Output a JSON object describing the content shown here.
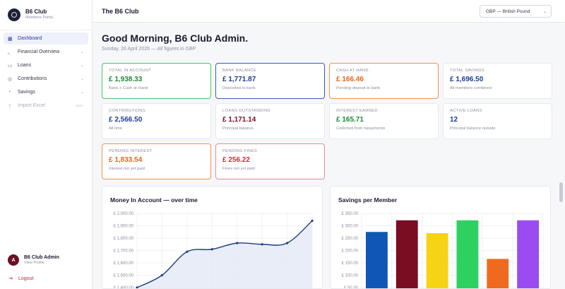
{
  "brand": {
    "title": "B6 Club",
    "subtitle": "Members Portal"
  },
  "nav": {
    "items": [
      {
        "label": "Dashboard",
        "icon": "grid-icon",
        "active": true,
        "chevron": false
      },
      {
        "label": "Financial Overview",
        "icon": "chart-icon",
        "active": false,
        "chevron": true
      },
      {
        "label": "Loans",
        "icon": "cash-icon",
        "active": false,
        "chevron": true
      },
      {
        "label": "Contributions",
        "icon": "coins-icon",
        "active": false,
        "chevron": true
      },
      {
        "label": "Savings",
        "icon": "piggy-bank-icon",
        "active": false,
        "chevron": true
      },
      {
        "label": "Import Excel",
        "icon": "upload-icon",
        "active": false,
        "chevron": false,
        "badge": "soon"
      }
    ]
  },
  "user": {
    "initial": "A",
    "name": "B6 Club Admin",
    "link": "View Profile"
  },
  "logout_label": "Logout",
  "topbar": {
    "title": "The B6 Club",
    "currency": "GBP — British Pound"
  },
  "greeting": "Good Morning, B6 Club Admin.",
  "subtitle": "Sunday, 26 April 2026 — All figures in GBP",
  "cards": [
    {
      "label": "Total in Account",
      "value": "£ 1,938.33",
      "caption": "Bank + Cash at Hand",
      "value_color": "#1f8a3a",
      "border_color": "#4cc46a"
    },
    {
      "label": "Bank Balance",
      "value": "£ 1,771.87",
      "caption": "Deposited to bank",
      "value_color": "#1f3c8f",
      "border_color": "#3b5bb8"
    },
    {
      "label": "Cash at Hand",
      "value": "£ 166.46",
      "caption": "Pending deposit to bank",
      "value_color": "#e8641b",
      "border_color": "#f0934f"
    },
    {
      "label": "Total Savings",
      "value": "£ 1,696.50",
      "caption": "All members combined",
      "value_color": "#1f3c8f",
      "border_color": "#e8e9ef"
    },
    {
      "label": "Contributions",
      "value": "£ 2,566.50",
      "caption": "All time",
      "value_color": "#1f3c8f",
      "border_color": "#e8e9ef"
    },
    {
      "label": "Loans Outstanding",
      "value": "£ 1,171.14",
      "caption": "Principal balance",
      "value_color": "#7a0f25",
      "border_color": "#e8e9ef"
    },
    {
      "label": "Interest Earned",
      "value": "£ 165.71",
      "caption": "Collected from repayments",
      "value_color": "#1f8a3a",
      "border_color": "#e8e9ef"
    },
    {
      "label": "Active Loans",
      "value": "12",
      "caption": "Principal balance outside",
      "value_color": "#1f3c8f",
      "border_color": "#e8e9ef"
    },
    {
      "label": "Pending Interest",
      "value": "£ 1,833.54",
      "caption": "Interest not yet paid",
      "value_color": "#e8641b",
      "border_color": "#f0934f"
    },
    {
      "label": "Pending Fines",
      "value": "£ 256.22",
      "caption": "Fines not yet paid",
      "value_color": "#d12a3c",
      "border_color": "#e98a96"
    }
  ],
  "chart_data": [
    {
      "type": "line",
      "title": "Money In Account — over time",
      "x": [
        0,
        1,
        2,
        3,
        4,
        5,
        6,
        7
      ],
      "series": [
        {
          "values": [
            1400,
            1500,
            1690,
            1710,
            1760,
            1750,
            1760,
            1940
          ]
        }
      ],
      "ylim": [
        1400,
        2000
      ],
      "y_ticks": [
        "£ 2,000.00",
        "£ 1,900.00",
        "£ 1,800.00",
        "£ 1,700.00",
        "£ 1,600.00",
        "£ 1,500.00",
        "£ 1,400.00"
      ],
      "grid": true,
      "line_color": "#1e3a8a",
      "fill_color": "#e4e8f5"
    },
    {
      "type": "bar",
      "title": "Savings per Member",
      "categories": [
        "",
        "",
        "",
        "",
        "",
        ""
      ],
      "values": [
        275,
        322,
        270,
        322,
        166,
        322
      ],
      "colors": [
        "#0f57b3",
        "#7a0d22",
        "#f7d315",
        "#2ed160",
        "#ef6a1e",
        "#9a4cf0"
      ],
      "ylim": [
        50,
        350
      ],
      "y_ticks": [
        "£ 350.00",
        "£ 300.00",
        "£ 250.00",
        "£ 200.00",
        "£ 150.00",
        "£ 100.00",
        "£ 50.00"
      ],
      "grid": true
    }
  ]
}
